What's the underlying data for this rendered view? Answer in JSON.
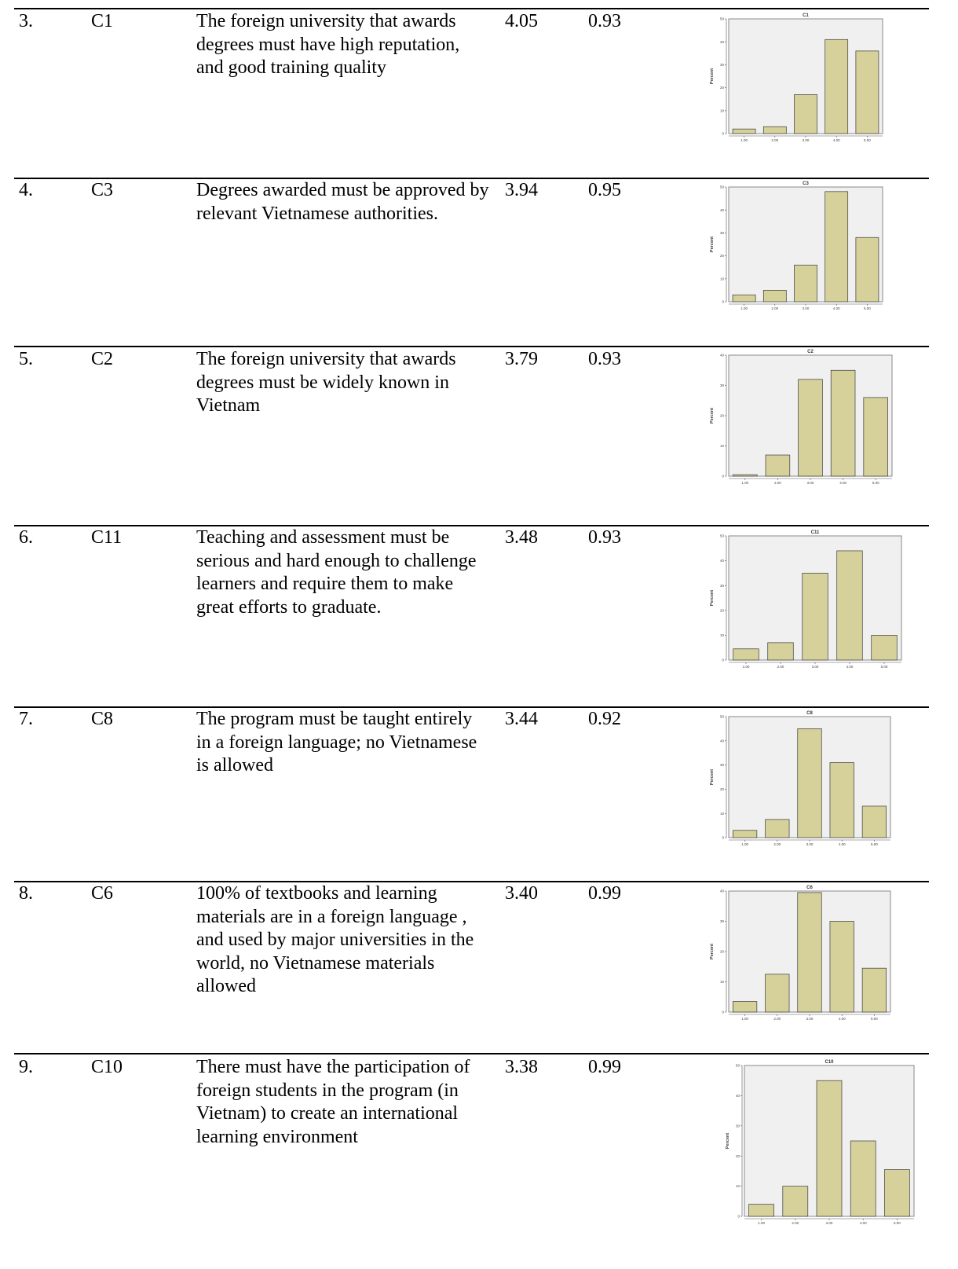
{
  "rows": [
    {
      "number": "3.",
      "code": "C1",
      "statement": "The foreign university that awards degrees must have high reputation, and good training quality",
      "mean": "4.05",
      "sd": "0.93"
    },
    {
      "number": "4.",
      "code": "C3",
      "statement": "Degrees awarded must be approved by relevant Vietnamese authorities.",
      "mean": "3.94",
      "sd": "0.95"
    },
    {
      "number": "5.",
      "code": "C2",
      "statement": "The foreign university that awards degrees must be widely known in Vietnam",
      "mean": "3.79",
      "sd": "0.93"
    },
    {
      "number": "6.",
      "code": "C11",
      "statement": "Teaching and assessment must be serious and hard enough to challenge learners and require them to make great efforts to graduate.",
      "mean": "3.48",
      "sd": "0.93"
    },
    {
      "number": "7.",
      "code": "C8",
      "statement": "The program must be taught entirely in a foreign language; no Vietnamese is allowed",
      "mean": "3.44",
      "sd": "0.92"
    },
    {
      "number": "8.",
      "code": "C6",
      "statement": "100% of textbooks and learning materials are in a foreign language , and used by major universities in the world, no Vietnamese materials allowed",
      "mean": "3.40",
      "sd": "0.99"
    },
    {
      "number": "9.",
      "code": "C10",
      "statement": "There must have the participation of foreign students in the program (in Vietnam) to create an international learning environment",
      "mean": "3.38",
      "sd": "0.99"
    }
  ],
  "chart_data": [
    {
      "type": "bar",
      "title": "C1",
      "ylabel": "Percent",
      "categories": [
        "1.00",
        "2.00",
        "3.00",
        "4.00",
        "5.00"
      ],
      "values": [
        2,
        3,
        17,
        41,
        36
      ],
      "ylim": [
        0,
        50
      ],
      "yticks": [
        0,
        10,
        20,
        30,
        40,
        50
      ],
      "colors": {
        "bar": "#d6d09a",
        "plot_bg": "#f0f0f0"
      }
    },
    {
      "type": "bar",
      "title": "C3",
      "ylabel": "Percent",
      "categories": [
        "1.00",
        "2.00",
        "3.00",
        "4.00",
        "5.00"
      ],
      "values": [
        3,
        5,
        16,
        48,
        28
      ],
      "ylim": [
        0,
        50
      ],
      "yticks": [
        0,
        10,
        20,
        30,
        40,
        50
      ],
      "colors": {
        "bar": "#d6d09a",
        "plot_bg": "#f0f0f0"
      }
    },
    {
      "type": "bar",
      "title": "C2",
      "ylabel": "Percent",
      "categories": [
        "1.00",
        "2.00",
        "3.00",
        "4.00",
        "5.00"
      ],
      "values": [
        0.5,
        7,
        32,
        35,
        26
      ],
      "ylim": [
        0,
        40
      ],
      "yticks": [
        0,
        10,
        20,
        30,
        40
      ],
      "colors": {
        "bar": "#d6d09a",
        "plot_bg": "#f0f0f0"
      }
    },
    {
      "type": "bar",
      "title": "C11",
      "ylabel": "Percent",
      "categories": [
        "1.00",
        "2.00",
        "3.00",
        "4.00",
        "5.00"
      ],
      "values": [
        4.5,
        7,
        35,
        44,
        10
      ],
      "ylim": [
        0,
        50
      ],
      "yticks": [
        0,
        10,
        20,
        30,
        40,
        50
      ],
      "colors": {
        "bar": "#d6d09a",
        "plot_bg": "#f0f0f0"
      }
    },
    {
      "type": "bar",
      "title": "C8",
      "ylabel": "Percent",
      "categories": [
        "1.00",
        "2.00",
        "3.00",
        "4.00",
        "5.00"
      ],
      "values": [
        3,
        7.5,
        45,
        31,
        13
      ],
      "ylim": [
        0,
        50
      ],
      "yticks": [
        0,
        10,
        20,
        30,
        40,
        50
      ],
      "colors": {
        "bar": "#d6d09a",
        "plot_bg": "#f0f0f0"
      }
    },
    {
      "type": "bar",
      "title": "C6",
      "ylabel": "Percent",
      "categories": [
        "1.00",
        "2.00",
        "3.00",
        "4.00",
        "5.00"
      ],
      "values": [
        3.5,
        12.5,
        39.5,
        30,
        14.5
      ],
      "ylim": [
        0,
        40
      ],
      "yticks": [
        0,
        10,
        20,
        30,
        40
      ],
      "colors": {
        "bar": "#d6d09a",
        "plot_bg": "#f0f0f0"
      }
    },
    {
      "type": "bar",
      "title": "C10",
      "ylabel": "Percent",
      "categories": [
        "1.00",
        "2.00",
        "3.00",
        "4.00",
        "5.00"
      ],
      "values": [
        4,
        10,
        45,
        25,
        15.5
      ],
      "ylim": [
        0,
        50
      ],
      "yticks": [
        0,
        10,
        20,
        30,
        40,
        50
      ],
      "colors": {
        "bar": "#d6d09a",
        "plot_bg": "#f0f0f0"
      }
    }
  ]
}
